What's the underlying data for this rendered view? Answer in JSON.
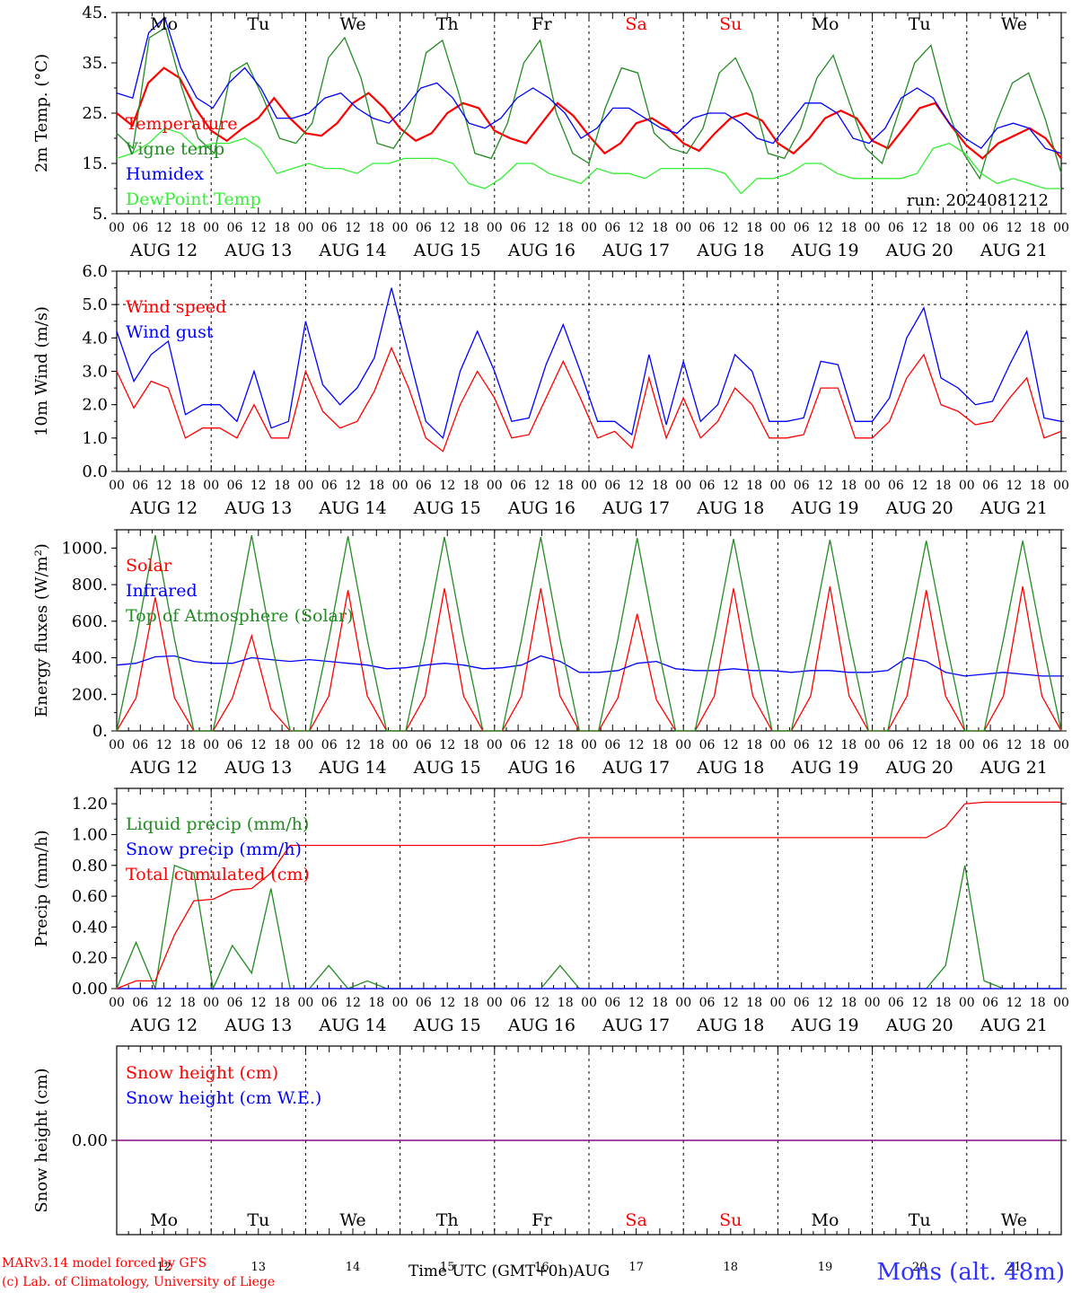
{
  "meta": {
    "run": "run: 2024081212",
    "model_credit": "MARv3.14 model forced by GFS",
    "lab_credit": "(c) Lab. of Climatology, University of Liege",
    "time_axis_label": "Time UTC (GMT+0h)",
    "month": "AUG",
    "station": "Mons (alt. 48m)"
  },
  "days": [
    "Mo",
    "Tu",
    "We",
    "Th",
    "Fr",
    "Sa",
    "Su",
    "Mo",
    "Tu",
    "We"
  ],
  "weekend_days": [
    "Sa",
    "Su"
  ],
  "day_labels": [
    "AUG 12",
    "AUG 13",
    "AUG 14",
    "AUG 15",
    "AUG 16",
    "AUG 17",
    "AUG 18",
    "AUG 19",
    "AUG 20",
    "AUG 21"
  ],
  "day_numbers": [
    "12",
    "13",
    "14",
    "15",
    "16",
    "17",
    "18",
    "19",
    "20",
    "21"
  ],
  "hour_ticks": [
    "00",
    "06",
    "12",
    "18"
  ],
  "colors": {
    "red": "#ff0000",
    "green": "#228b22",
    "blue": "#0000ff",
    "lime": "#33ee33",
    "purple": "#7f007f",
    "weekend": "#ff0000"
  },
  "chart_data": [
    {
      "type": "line",
      "ylabel": "2m Temp. (°C)",
      "ylim": [
        5,
        45
      ],
      "yticks": [
        5,
        15,
        25,
        35,
        45
      ],
      "ytick_labels": [
        "5.",
        "15.",
        "25.",
        "35.",
        "45."
      ],
      "x_step_hours": 6,
      "series": [
        {
          "name": "Temperature",
          "color": "red",
          "values": [
            25,
            22.5,
            31,
            34,
            32,
            26,
            21.5,
            19.5,
            22,
            24,
            28,
            24,
            21,
            20.5,
            23,
            27,
            29,
            26,
            22,
            19.5,
            21,
            25,
            27,
            26,
            21.5,
            20,
            19,
            23,
            27,
            24.5,
            20.5,
            17,
            19,
            23,
            24,
            22,
            19,
            17.5,
            21,
            24,
            25,
            23.5,
            19,
            17,
            20,
            24,
            25.5,
            24,
            19.5,
            18,
            22,
            26,
            27,
            22.5,
            18.5,
            16,
            19,
            20.5,
            22,
            20,
            16
          ]
        },
        {
          "name": "Vigne temp",
          "color": "green",
          "values": [
            21,
            18,
            40,
            42,
            30,
            20,
            17,
            33,
            35,
            28,
            20,
            19,
            23,
            36,
            40,
            32,
            19,
            18,
            23,
            37,
            39.5,
            29,
            17,
            16,
            23,
            35,
            39.5,
            25,
            17,
            15,
            26,
            34,
            33,
            21,
            18,
            17,
            22,
            33,
            36,
            29,
            17,
            16,
            22,
            32,
            36.5,
            27,
            18,
            15,
            25,
            35,
            38.5,
            26,
            17,
            12,
            23,
            31,
            33,
            24,
            13
          ]
        },
        {
          "name": "Humidex",
          "color": "blue",
          "values": [
            29,
            28,
            41,
            44,
            34,
            28,
            26,
            31,
            34,
            30,
            24,
            24,
            25,
            28,
            29,
            26,
            24,
            23,
            26,
            30,
            31,
            28,
            23,
            22,
            24,
            28,
            30,
            28,
            25,
            20,
            22,
            26,
            26,
            24,
            22,
            21,
            24,
            25,
            25,
            23,
            20,
            19,
            23,
            27,
            27,
            25,
            20,
            19,
            22,
            28,
            30,
            28,
            23,
            20,
            18,
            22,
            23,
            22,
            18,
            17
          ]
        },
        {
          "name": "DewPoint Temp",
          "color": "lime",
          "values": [
            16,
            17,
            19,
            22,
            21,
            18,
            19,
            19,
            20,
            18,
            13,
            14,
            15,
            14,
            14,
            13,
            15,
            15,
            16,
            16,
            16,
            15,
            11,
            10,
            12,
            15,
            15,
            13,
            12,
            11,
            14,
            13,
            13,
            12,
            14,
            14,
            14,
            14,
            13,
            9,
            12,
            12,
            13,
            15,
            15,
            13,
            12,
            12,
            12,
            12,
            13,
            18,
            19,
            17,
            13,
            11,
            12,
            11,
            10,
            10
          ]
        }
      ]
    },
    {
      "type": "line",
      "ylabel": "10m Wind (m/s)",
      "ylim": [
        0,
        6
      ],
      "yticks": [
        0,
        1,
        2,
        3,
        4,
        5,
        6
      ],
      "ytick_labels": [
        "0.0",
        "1.0",
        "2.0",
        "3.0",
        "4.0",
        "5.0",
        "6.0"
      ],
      "x_step_hours": 6,
      "series": [
        {
          "name": "Wind speed",
          "color": "red",
          "values": [
            3,
            1.9,
            2.7,
            2.5,
            1,
            1.3,
            1.3,
            1,
            2,
            1,
            1,
            3,
            1.8,
            1.3,
            1.5,
            2.4,
            3.7,
            2.5,
            1,
            0.6,
            2,
            3,
            2.2,
            1,
            1.1,
            2.2,
            3.3,
            2.2,
            1,
            1.2,
            0.7,
            2.8,
            1,
            2.2,
            1,
            1.5,
            2.5,
            2,
            1,
            1,
            1.1,
            2.5,
            2.5,
            1,
            1,
            1.5,
            2.8,
            3.5,
            2,
            1.8,
            1.4,
            1.5,
            2.2,
            2.8,
            1,
            1.2
          ]
        },
        {
          "name": "Wind gust",
          "color": "blue",
          "values": [
            4.2,
            2.7,
            3.5,
            3.9,
            1.7,
            2,
            2,
            1.5,
            3,
            1.3,
            1.5,
            4.5,
            2.6,
            2,
            2.5,
            3.4,
            5.5,
            3.5,
            1.5,
            1,
            3,
            4.2,
            3,
            1.5,
            1.6,
            3.2,
            4.4,
            3,
            1.5,
            1.5,
            1.1,
            3.5,
            1.4,
            3.3,
            1.5,
            2,
            3.5,
            3,
            1.5,
            1.5,
            1.6,
            3.3,
            3.2,
            1.5,
            1.5,
            2.2,
            4,
            4.9,
            2.8,
            2.5,
            2,
            2.1,
            3.2,
            4.2,
            1.6,
            1.5
          ]
        }
      ]
    },
    {
      "type": "line",
      "ylabel": "Energy fluxes (W/m²)",
      "ylim": [
        0,
        1100
      ],
      "yticks": [
        0,
        200,
        400,
        600,
        800,
        1000
      ],
      "ytick_labels": [
        "0.",
        "200.",
        "400.",
        "600.",
        "800.",
        "1000."
      ],
      "x_step_hours": 6,
      "series": [
        {
          "name": "Solar",
          "color": "red",
          "values": [
            0,
            180,
            730,
            180,
            0,
            0,
            180,
            520,
            120,
            0,
            0,
            190,
            770,
            190,
            0,
            0,
            190,
            780,
            190,
            0,
            0,
            190,
            780,
            190,
            0,
            0,
            180,
            640,
            170,
            0,
            0,
            190,
            780,
            190,
            0,
            0,
            190,
            790,
            190,
            0,
            0,
            190,
            770,
            190,
            0,
            0,
            190,
            790,
            190,
            0
          ]
        },
        {
          "name": "Infrared",
          "color": "blue",
          "values": [
            360,
            370,
            405,
            410,
            380,
            370,
            370,
            400,
            390,
            380,
            390,
            380,
            370,
            360,
            340,
            345,
            360,
            370,
            360,
            340,
            345,
            360,
            410,
            380,
            320,
            320,
            330,
            370,
            380,
            340,
            330,
            330,
            340,
            330,
            330,
            320,
            330,
            330,
            320,
            320,
            330,
            400,
            380,
            320,
            300,
            310,
            320,
            310,
            300,
            300
          ]
        },
        {
          "name": "Top of Atmosphere (Solar)",
          "color": "green",
          "values": [
            0,
            500,
            1070,
            500,
            0,
            0,
            500,
            1070,
            500,
            0,
            0,
            500,
            1065,
            500,
            0,
            0,
            500,
            1060,
            500,
            0,
            0,
            500,
            1060,
            500,
            0,
            0,
            500,
            1055,
            500,
            0,
            0,
            500,
            1050,
            500,
            0,
            0,
            500,
            1045,
            500,
            0,
            0,
            500,
            1040,
            500,
            0,
            0,
            500,
            1040,
            500,
            0
          ]
        }
      ]
    },
    {
      "type": "line",
      "ylabel": "Precip (mm/h)",
      "ylim": [
        0,
        1.3
      ],
      "yticks": [
        0,
        0.2,
        0.4,
        0.6,
        0.8,
        1.0,
        1.2
      ],
      "ytick_labels": [
        "0.00",
        "0.20",
        "0.40",
        "0.60",
        "0.80",
        "1.00",
        "1.20"
      ],
      "x_step_hours": 6,
      "series": [
        {
          "name": "Liquid precip (mm/h)",
          "color": "green",
          "values": [
            0,
            0.3,
            0,
            0.8,
            0.75,
            0,
            0.28,
            0.1,
            0.65,
            0,
            0,
            0.15,
            0,
            0.05,
            0,
            0,
            0,
            0,
            0,
            0,
            0,
            0,
            0,
            0.15,
            0,
            0,
            0,
            0,
            0,
            0,
            0,
            0,
            0,
            0,
            0,
            0,
            0,
            0,
            0,
            0,
            0,
            0,
            0,
            0.15,
            0.8,
            0.05,
            0,
            0,
            0,
            0
          ]
        },
        {
          "name": "Snow precip (mm/h)",
          "color": "blue",
          "values": [
            0,
            0,
            0,
            0,
            0,
            0,
            0,
            0,
            0,
            0,
            0,
            0,
            0,
            0,
            0,
            0,
            0,
            0,
            0,
            0,
            0,
            0,
            0,
            0,
            0,
            0,
            0,
            0,
            0,
            0,
            0,
            0,
            0,
            0,
            0,
            0,
            0,
            0,
            0,
            0,
            0,
            0,
            0,
            0,
            0,
            0,
            0,
            0,
            0,
            0
          ]
        },
        {
          "name": "Total cumulated (cm)",
          "color": "red",
          "values": [
            0,
            0.05,
            0.05,
            0.35,
            0.57,
            0.58,
            0.64,
            0.65,
            0.75,
            0.93,
            0.93,
            0.93,
            0.93,
            0.93,
            0.93,
            0.93,
            0.93,
            0.93,
            0.93,
            0.93,
            0.93,
            0.93,
            0.93,
            0.95,
            0.98,
            0.98,
            0.98,
            0.98,
            0.98,
            0.98,
            0.98,
            0.98,
            0.98,
            0.98,
            0.98,
            0.98,
            0.98,
            0.98,
            0.98,
            0.98,
            0.98,
            0.98,
            0.98,
            1.05,
            1.2,
            1.21,
            1.21,
            1.21,
            1.21,
            1.21
          ]
        }
      ]
    },
    {
      "type": "line",
      "ylabel": "Snow height (cm)",
      "ylim": [
        -1,
        1
      ],
      "yticks": [
        0
      ],
      "ytick_labels": [
        "0.00"
      ],
      "x_step_hours": 6,
      "series": [
        {
          "name": "Snow height (cm)",
          "color": "red",
          "values": [
            0,
            0
          ]
        },
        {
          "name": "Snow height (cm W.E.)",
          "color": "blue",
          "values": [
            0,
            0
          ]
        }
      ]
    }
  ]
}
